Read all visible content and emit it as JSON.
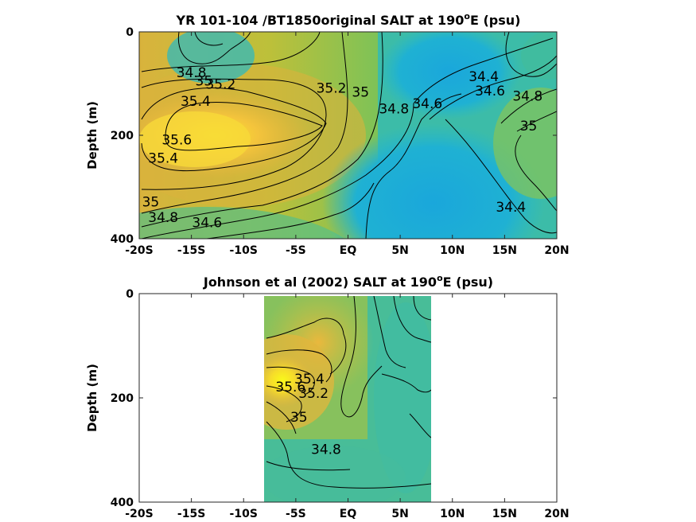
{
  "chart_data": [
    {
      "type": "contour",
      "title_main": "YR 101-104 /BT1850original SALT at 190",
      "title_sup": "o",
      "title_tail": "E (psu)",
      "ylabel": "Depth (m)",
      "xlabel": "",
      "x_ticks": [
        "-20S",
        "-15S",
        "-10S",
        "-5S",
        "EQ",
        "5N",
        "10N",
        "15N",
        "20N"
      ],
      "y_ticks": [
        "0",
        "200",
        "400"
      ],
      "xlim": [
        -20,
        20
      ],
      "ylim": [
        400,
        0
      ],
      "y_reversed": true,
      "data_extent": {
        "x": [
          -20,
          20
        ],
        "depth": [
          0,
          400
        ]
      },
      "colormap": "parula",
      "contour_levels_labeled": [
        34.4,
        34.6,
        34.8,
        35,
        35.2,
        35.4,
        35.6
      ],
      "contour_labels": [
        {
          "text": "34.8",
          "lat": -15,
          "depth": 80
        },
        {
          "text": "35",
          "lat": -13.8,
          "depth": 96
        },
        {
          "text": "35.2",
          "lat": -12.2,
          "depth": 102
        },
        {
          "text": "35.4",
          "lat": -14.6,
          "depth": 135
        },
        {
          "text": "35.6",
          "lat": -16.4,
          "depth": 210
        },
        {
          "text": "35.4",
          "lat": -17.7,
          "depth": 245
        },
        {
          "text": "35",
          "lat": -18.9,
          "depth": 330
        },
        {
          "text": "34.8",
          "lat": -17.7,
          "depth": 360
        },
        {
          "text": "34.6",
          "lat": -13.5,
          "depth": 370
        },
        {
          "text": "35.2",
          "lat": -1.6,
          "depth": 110
        },
        {
          "text": "35",
          "lat": 1.2,
          "depth": 118
        },
        {
          "text": "34.8",
          "lat": 4.4,
          "depth": 150
        },
        {
          "text": "34.6",
          "lat": 7.6,
          "depth": 140
        },
        {
          "text": "34.4",
          "lat": 13,
          "depth": 88
        },
        {
          "text": "34.6",
          "lat": 13.6,
          "depth": 115
        },
        {
          "text": "34.8",
          "lat": 17.2,
          "depth": 125
        },
        {
          "text": "35",
          "lat": 17.3,
          "depth": 183
        },
        {
          "text": "34.4",
          "lat": 15.6,
          "depth": 340
        }
      ]
    },
    {
      "type": "contour",
      "title_main": "Johnson et al (2002) SALT at 190",
      "title_sup": "o",
      "title_tail": "E (psu)",
      "ylabel": "Depth (m)",
      "xlabel": "",
      "x_ticks": [
        "-20S",
        "-15S",
        "-10S",
        "-5S",
        "EQ",
        "5N",
        "10N",
        "15N",
        "20N"
      ],
      "y_ticks": [
        "0",
        "200",
        "400"
      ],
      "xlim": [
        -20,
        20
      ],
      "ylim": [
        400,
        0
      ],
      "y_reversed": true,
      "data_extent": {
        "x": [
          -8,
          8
        ],
        "depth": [
          5,
          400
        ]
      },
      "colormap": "parula",
      "contour_levels_labeled": [
        34.8,
        35,
        35.2,
        35.4,
        35.6
      ],
      "contour_labels": [
        {
          "text": "35.6",
          "lat": -5.5,
          "depth": 180
        },
        {
          "text": "35.4",
          "lat": -3.7,
          "depth": 165
        },
        {
          "text": "35.2",
          "lat": -3.3,
          "depth": 192
        },
        {
          "text": "35",
          "lat": -4.7,
          "depth": 238
        },
        {
          "text": "34.8",
          "lat": -2.1,
          "depth": 300
        }
      ]
    }
  ]
}
